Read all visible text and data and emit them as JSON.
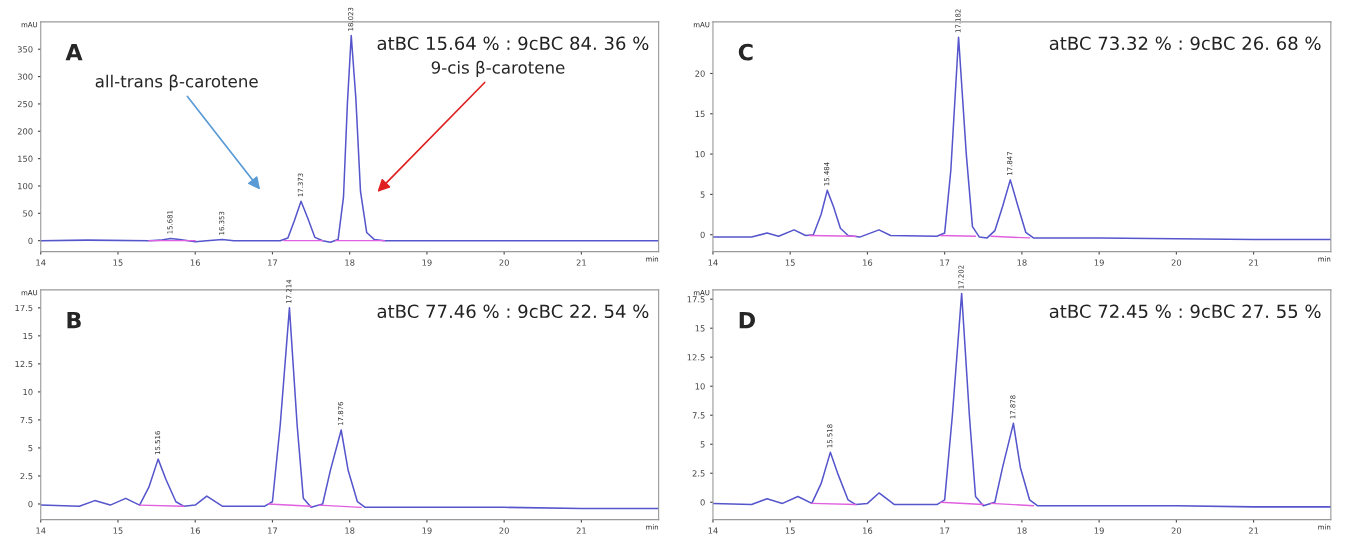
{
  "chart_data": [
    {
      "type": "line",
      "title": "A",
      "xlabel": "min",
      "ylabel": "mAU",
      "xlim": [
        14,
        22
      ],
      "xticks": [
        14,
        15,
        16,
        17,
        18,
        19,
        20,
        21
      ],
      "ylim": [
        -20,
        400
      ],
      "yticks": [
        0,
        50,
        100,
        150,
        200,
        250,
        300,
        350
      ],
      "annotations": [
        "atBC 15.64 % : 9cBC 84. 36 %",
        "all-trans β-carotene",
        "9-cis β-carotene",
        {
          "text": "15.681",
          "x": 15.68,
          "y": 4
        },
        {
          "text": "16.353",
          "x": 16.35,
          "y": 2
        },
        {
          "text": "17.373",
          "x": 17.37,
          "y": 72
        },
        {
          "text": "18.023",
          "x": 18.02,
          "y": 375
        }
      ],
      "series": [
        {
          "color": "#5555cc",
          "x": [
            14,
            14.6,
            15.4,
            15.55,
            15.68,
            15.8,
            16.0,
            16.15,
            16.35,
            16.5,
            17.1,
            17.2,
            17.28,
            17.37,
            17.46,
            17.55,
            17.65,
            17.75,
            17.85,
            17.92,
            17.97,
            18.02,
            18.08,
            18.14,
            18.22,
            18.32,
            18.45,
            19,
            20,
            21,
            22
          ],
          "values": [
            0,
            1,
            0,
            1,
            4,
            2,
            -2,
            0,
            2,
            0,
            0,
            5,
            35,
            72,
            40,
            6,
            0,
            -3,
            2,
            80,
            250,
            375,
            260,
            90,
            15,
            2,
            0,
            0,
            0,
            0,
            0
          ]
        },
        {
          "color": "#e060e0",
          "x": [
            15.4,
            16.0,
            null,
            17.15,
            17.65,
            null,
            17.82,
            18.45
          ],
          "values": [
            0,
            0,
            null,
            0,
            0,
            null,
            0,
            0
          ]
        }
      ]
    },
    {
      "type": "line",
      "title": "C",
      "xlabel": "min",
      "ylabel": "mAU",
      "xlim": [
        14,
        22
      ],
      "xticks": [
        14,
        15,
        16,
        17,
        18,
        19,
        20,
        21
      ],
      "ylim": [
        -2.1,
        26.4
      ],
      "yticks": [
        0,
        5,
        10,
        15,
        20
      ],
      "annotations": [
        "atBC 73.32 % : 9cBC 26. 68 %",
        {
          "text": "15.484",
          "x": 15.48,
          "y": 5.5
        },
        {
          "text": "17.182",
          "x": 17.18,
          "y": 24.5
        },
        {
          "text": "17.847",
          "x": 17.85,
          "y": 6.8
        }
      ],
      "series": [
        {
          "color": "#5555cc",
          "x": [
            14,
            14.5,
            14.7,
            14.85,
            15.05,
            15.2,
            15.3,
            15.4,
            15.48,
            15.56,
            15.65,
            15.75,
            15.9,
            16.15,
            16.3,
            16.9,
            17.0,
            17.08,
            17.18,
            17.28,
            17.36,
            17.45,
            17.55,
            17.65,
            17.75,
            17.85,
            17.95,
            18.05,
            18.15,
            19,
            20,
            21,
            22
          ],
          "values": [
            -0.3,
            -0.3,
            0.2,
            -0.2,
            0.6,
            -0.1,
            0,
            2.5,
            5.5,
            3.5,
            0.8,
            -0.1,
            -0.3,
            0.6,
            -0.1,
            -0.2,
            0.2,
            8,
            24.5,
            10,
            1,
            -0.3,
            -0.4,
            0.5,
            3.5,
            6.8,
            3.5,
            0.3,
            -0.4,
            -0.4,
            -0.5,
            -0.6,
            -0.6
          ]
        },
        {
          "color": "#e060e0",
          "x": [
            15.25,
            15.85,
            null,
            16.95,
            17.4,
            null,
            17.6,
            18.1
          ],
          "values": [
            -0.1,
            -0.2,
            null,
            -0.1,
            -0.2,
            null,
            -0.2,
            -0.4
          ]
        }
      ]
    },
    {
      "type": "line",
      "title": "B",
      "xlabel": "min",
      "ylabel": "mAU",
      "xlim": [
        14,
        22
      ],
      "xticks": [
        14,
        15,
        16,
        17,
        18,
        19,
        20,
        21
      ],
      "ylim": [
        -1.4,
        19.1
      ],
      "yticks": [
        0,
        2.5,
        5,
        7.5,
        10,
        12.5,
        15,
        17.5
      ],
      "annotations": [
        "atBC 77.46 % : 9cBC 22. 54 %",
        {
          "text": "15.516",
          "x": 15.52,
          "y": 4.0
        },
        {
          "text": "17.214",
          "x": 17.22,
          "y": 17.5
        },
        {
          "text": "17.876",
          "x": 17.89,
          "y": 6.6
        }
      ],
      "series": [
        {
          "color": "#5555cc",
          "x": [
            14,
            14.5,
            14.7,
            14.9,
            15.1,
            15.28,
            15.4,
            15.52,
            15.62,
            15.75,
            15.85,
            16.0,
            16.15,
            16.35,
            16.9,
            17.0,
            17.1,
            17.22,
            17.32,
            17.4,
            17.5,
            17.65,
            17.75,
            17.89,
            17.98,
            18.1,
            18.2,
            19,
            20,
            21,
            22
          ],
          "values": [
            -0.1,
            -0.2,
            0.3,
            -0.1,
            0.5,
            -0.1,
            1.5,
            4.0,
            2.2,
            0.2,
            -0.2,
            -0.1,
            0.7,
            -0.2,
            -0.2,
            0.2,
            7,
            17.5,
            7,
            0.5,
            -0.3,
            0,
            3,
            6.6,
            3,
            0.2,
            -0.3,
            -0.3,
            -0.3,
            -0.4,
            -0.4
          ]
        },
        {
          "color": "#e060e0",
          "x": [
            15.28,
            15.85,
            null,
            16.95,
            17.5,
            null,
            17.6,
            18.15
          ],
          "values": [
            -0.1,
            -0.2,
            null,
            0,
            -0.2,
            null,
            -0.1,
            -0.3
          ]
        }
      ]
    },
    {
      "type": "line",
      "title": "D",
      "xlabel": "min",
      "ylabel": "mAU",
      "xlim": [
        14,
        22
      ],
      "xticks": [
        14,
        15,
        16,
        17,
        18,
        19,
        20,
        21
      ],
      "ylim": [
        -1.5,
        18.3
      ],
      "yticks": [
        0,
        2.5,
        5,
        7.5,
        10,
        12.5,
        15,
        17.5
      ],
      "annotations": [
        "atBC 72.45 % : 9cBC 27. 55 %",
        {
          "text": "15.518",
          "x": 15.52,
          "y": 4.3
        },
        {
          "text": "17.202",
          "x": 17.22,
          "y": 18.0
        },
        {
          "text": "17.878",
          "x": 17.89,
          "y": 6.8
        }
      ],
      "series": [
        {
          "color": "#5555cc",
          "x": [
            14,
            14.5,
            14.7,
            14.9,
            15.1,
            15.28,
            15.4,
            15.52,
            15.62,
            15.75,
            15.85,
            16.0,
            16.15,
            16.35,
            16.9,
            17.0,
            17.1,
            17.22,
            17.32,
            17.4,
            17.5,
            17.65,
            17.75,
            17.89,
            17.98,
            18.1,
            18.2,
            19,
            20,
            21,
            22
          ],
          "values": [
            -0.1,
            -0.2,
            0.3,
            -0.1,
            0.5,
            -0.1,
            1.6,
            4.3,
            2.4,
            0.2,
            -0.2,
            -0.1,
            0.8,
            -0.2,
            -0.2,
            0.2,
            7.5,
            18.0,
            7.5,
            0.5,
            -0.3,
            0,
            3,
            6.8,
            3,
            0.2,
            -0.3,
            -0.3,
            -0.3,
            -0.4,
            -0.4
          ]
        },
        {
          "color": "#e060e0",
          "x": [
            15.28,
            15.85,
            null,
            16.95,
            17.5,
            null,
            17.6,
            18.15
          ],
          "values": [
            -0.1,
            -0.2,
            null,
            0,
            -0.2,
            null,
            -0.1,
            -0.3
          ]
        }
      ]
    }
  ]
}
